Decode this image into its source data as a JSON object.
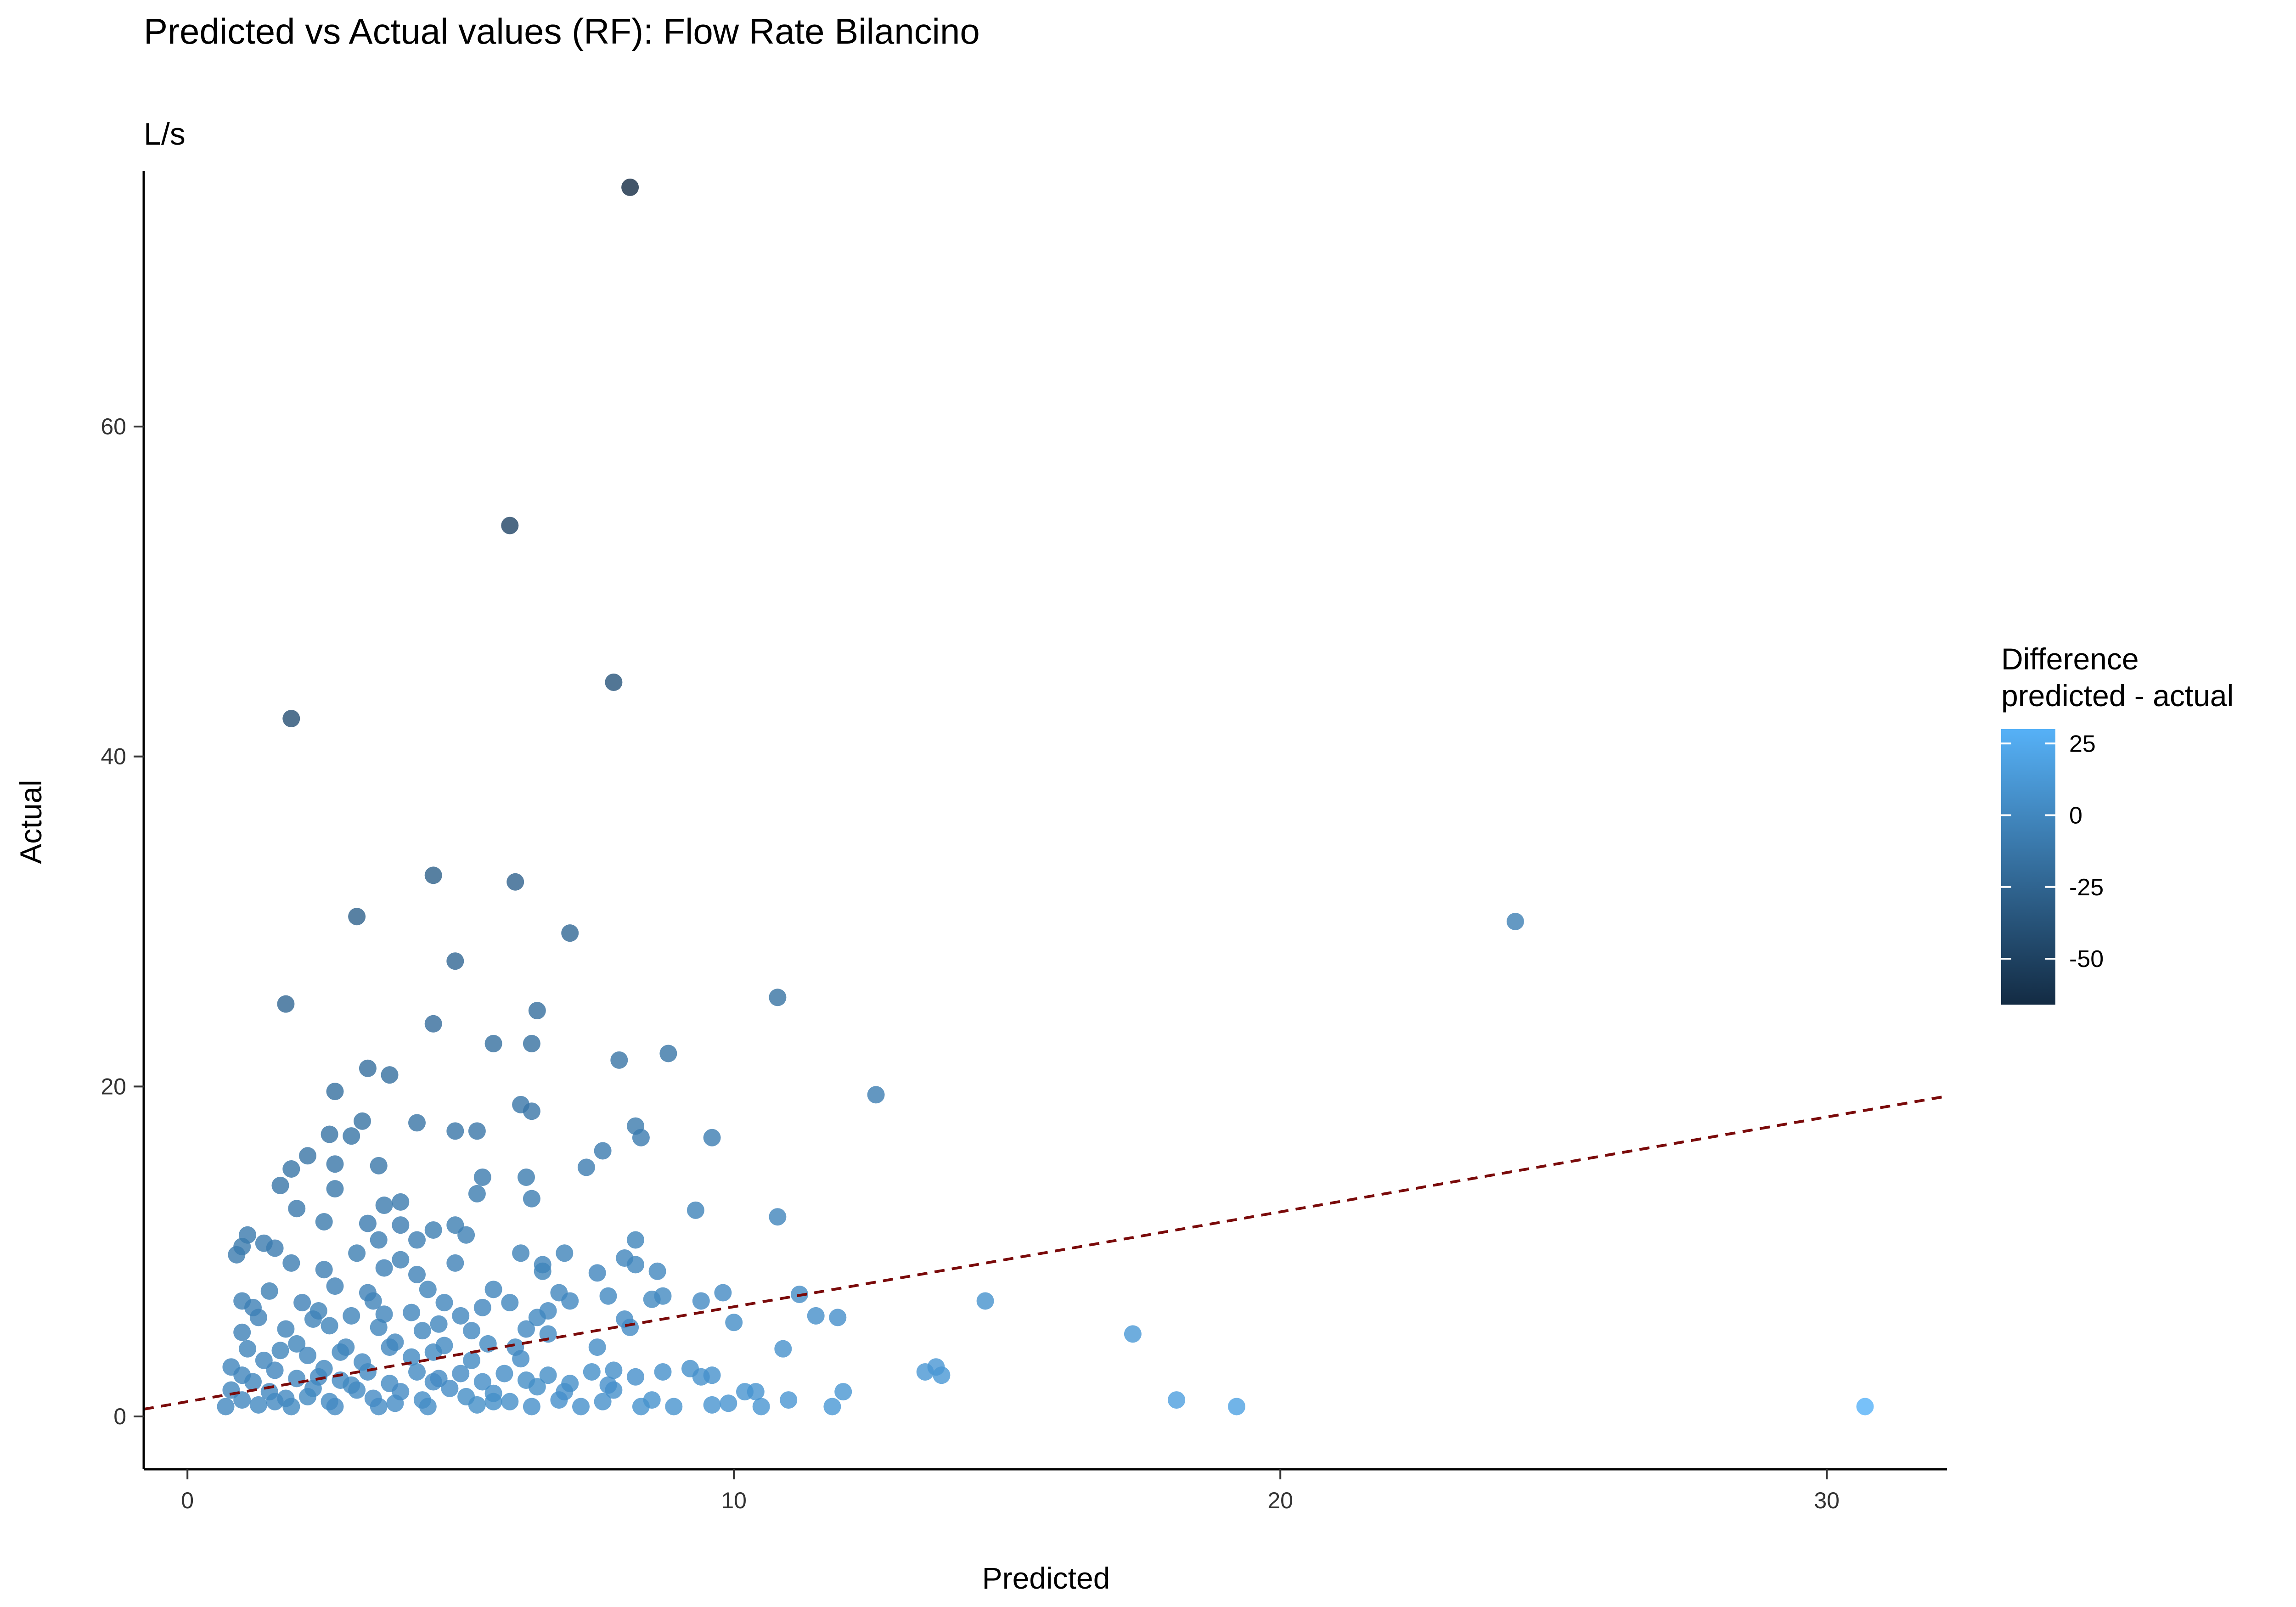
{
  "chart_data": {
    "type": "scatter",
    "title": "Predicted vs Actual values (RF): Flow Rate Bilancino",
    "subtitle": "L/s",
    "xlabel": "Predicted",
    "ylabel": "Actual",
    "xlim": [
      -0.8,
      32.2
    ],
    "ylim": [
      -3.2,
      75.5
    ],
    "x_ticks": [
      "0",
      "10",
      "20",
      "30"
    ],
    "y_ticks": [
      "0",
      "20",
      "40",
      "60"
    ],
    "grid": false,
    "reference_line": {
      "style": "dashed",
      "color": "#7a0a0a",
      "intercept": 0.9,
      "slope": 0.575
    },
    "legend": {
      "title_lines": [
        "Difference",
        "predicted - actual"
      ],
      "position": "right",
      "ticks": [
        "25",
        "0",
        "-25",
        "-50"
      ],
      "range": [
        -66,
        30
      ],
      "color_low": "#132B43",
      "color_high": "#56B1F7"
    },
    "points": [
      [
        8.1,
        74.5
      ],
      [
        5.9,
        54.0
      ],
      [
        1.9,
        42.3
      ],
      [
        7.8,
        44.5
      ],
      [
        4.5,
        32.8
      ],
      [
        6.0,
        32.4
      ],
      [
        3.1,
        30.3
      ],
      [
        7.0,
        29.3
      ],
      [
        4.9,
        27.6
      ],
      [
        1.8,
        25.0
      ],
      [
        10.8,
        25.4
      ],
      [
        6.4,
        24.6
      ],
      [
        4.5,
        23.8
      ],
      [
        5.6,
        22.6
      ],
      [
        6.3,
        22.6
      ],
      [
        8.8,
        22.0
      ],
      [
        7.9,
        21.6
      ],
      [
        3.3,
        21.1
      ],
      [
        3.7,
        20.7
      ],
      [
        2.7,
        19.7
      ],
      [
        12.6,
        19.5
      ],
      [
        6.1,
        18.9
      ],
      [
        6.3,
        18.5
      ],
      [
        3.2,
        17.9
      ],
      [
        4.2,
        17.8
      ],
      [
        8.2,
        17.6
      ],
      [
        5.3,
        17.3
      ],
      [
        4.9,
        17.3
      ],
      [
        2.6,
        17.1
      ],
      [
        3.0,
        17.0
      ],
      [
        8.3,
        16.9
      ],
      [
        9.6,
        16.9
      ],
      [
        7.6,
        16.1
      ],
      [
        2.2,
        15.8
      ],
      [
        3.5,
        15.2
      ],
      [
        7.3,
        15.1
      ],
      [
        2.7,
        15.3
      ],
      [
        1.9,
        15.0
      ],
      [
        5.4,
        14.5
      ],
      [
        6.2,
        14.5
      ],
      [
        1.7,
        14.0
      ],
      [
        2.7,
        13.8
      ],
      [
        5.3,
        13.5
      ],
      [
        6.3,
        13.2
      ],
      [
        3.9,
        13.0
      ],
      [
        3.6,
        12.8
      ],
      [
        2.0,
        12.6
      ],
      [
        9.3,
        12.5
      ],
      [
        10.8,
        12.1
      ],
      [
        2.5,
        11.8
      ],
      [
        3.3,
        11.7
      ],
      [
        3.9,
        11.6
      ],
      [
        4.9,
        11.6
      ],
      [
        4.5,
        11.3
      ],
      [
        1.1,
        11.0
      ],
      [
        5.1,
        11.0
      ],
      [
        3.5,
        10.7
      ],
      [
        4.2,
        10.7
      ],
      [
        1.4,
        10.5
      ],
      [
        1.0,
        10.3
      ],
      [
        8.2,
        10.7
      ],
      [
        0.9,
        9.8
      ],
      [
        1.6,
        10.2
      ],
      [
        3.1,
        9.9
      ],
      [
        6.1,
        9.9
      ],
      [
        6.9,
        9.9
      ],
      [
        8.0,
        9.6
      ],
      [
        1.9,
        9.3
      ],
      [
        4.9,
        9.3
      ],
      [
        3.9,
        9.5
      ],
      [
        8.2,
        9.2
      ],
      [
        6.5,
        9.2
      ],
      [
        3.6,
        9.0
      ],
      [
        2.5,
        8.9
      ],
      [
        4.2,
        8.6
      ],
      [
        6.5,
        8.8
      ],
      [
        7.5,
        8.7
      ],
      [
        8.6,
        8.8
      ],
      [
        1.5,
        7.6
      ],
      [
        2.7,
        7.9
      ],
      [
        3.3,
        7.5
      ],
      [
        4.4,
        7.7
      ],
      [
        5.6,
        7.7
      ],
      [
        6.8,
        7.5
      ],
      [
        7.7,
        7.3
      ],
      [
        8.7,
        7.3
      ],
      [
        11.2,
        7.4
      ],
      [
        14.6,
        7.0
      ],
      [
        9.8,
        7.5
      ],
      [
        9.4,
        7.0
      ],
      [
        1.0,
        7.0
      ],
      [
        2.1,
        6.9
      ],
      [
        3.4,
        7.0
      ],
      [
        4.7,
        6.9
      ],
      [
        5.9,
        6.9
      ],
      [
        7.0,
        7.0
      ],
      [
        8.5,
        7.1
      ],
      [
        1.3,
        6.0
      ],
      [
        2.4,
        6.4
      ],
      [
        3.0,
        6.1
      ],
      [
        4.1,
        6.3
      ],
      [
        5.0,
        6.1
      ],
      [
        6.4,
        6.0
      ],
      [
        8.0,
        5.9
      ],
      [
        10.0,
        5.7
      ],
      [
        11.5,
        6.1
      ],
      [
        11.9,
        6.0
      ],
      [
        1.0,
        5.1
      ],
      [
        1.8,
        5.3
      ],
      [
        2.6,
        5.5
      ],
      [
        3.5,
        5.4
      ],
      [
        4.3,
        5.2
      ],
      [
        5.2,
        5.2
      ],
      [
        6.2,
        5.3
      ],
      [
        6.6,
        5.0
      ],
      [
        8.1,
        5.4
      ],
      [
        17.3,
        5.0
      ],
      [
        1.1,
        4.1
      ],
      [
        2.0,
        4.4
      ],
      [
        2.9,
        4.2
      ],
      [
        3.8,
        4.5
      ],
      [
        4.7,
        4.3
      ],
      [
        5.5,
        4.4
      ],
      [
        7.5,
        4.2
      ],
      [
        10.9,
        4.1
      ],
      [
        1.4,
        3.4
      ],
      [
        2.2,
        3.7
      ],
      [
        3.2,
        3.3
      ],
      [
        4.1,
        3.6
      ],
      [
        5.2,
        3.4
      ],
      [
        6.1,
        3.5
      ],
      [
        13.7,
        3.0
      ],
      [
        0.8,
        3.0
      ],
      [
        1.6,
        2.8
      ],
      [
        2.5,
        2.9
      ],
      [
        3.3,
        2.7
      ],
      [
        4.2,
        2.7
      ],
      [
        5.0,
        2.6
      ],
      [
        5.8,
        2.6
      ],
      [
        6.6,
        2.5
      ],
      [
        7.4,
        2.7
      ],
      [
        7.8,
        2.8
      ],
      [
        8.7,
        2.7
      ],
      [
        9.2,
        2.9
      ],
      [
        9.6,
        2.5
      ],
      [
        13.5,
        2.7
      ],
      [
        13.8,
        2.5
      ],
      [
        1.2,
        2.1
      ],
      [
        2.0,
        2.3
      ],
      [
        2.8,
        2.2
      ],
      [
        3.7,
        2.0
      ],
      [
        4.5,
        2.1
      ],
      [
        5.4,
        2.1
      ],
      [
        6.2,
        2.2
      ],
      [
        7.0,
        2.0
      ],
      [
        8.2,
        2.4
      ],
      [
        9.4,
        2.4
      ],
      [
        0.8,
        1.6
      ],
      [
        1.5,
        1.5
      ],
      [
        2.3,
        1.7
      ],
      [
        3.1,
        1.6
      ],
      [
        3.9,
        1.5
      ],
      [
        4.8,
        1.7
      ],
      [
        5.6,
        1.4
      ],
      [
        6.9,
        1.5
      ],
      [
        7.8,
        1.6
      ],
      [
        10.2,
        1.5
      ],
      [
        10.4,
        1.5
      ],
      [
        12.0,
        1.5
      ],
      [
        1.0,
        1.0
      ],
      [
        1.8,
        1.1
      ],
      [
        2.6,
        0.9
      ],
      [
        3.4,
        1.1
      ],
      [
        4.3,
        1.0
      ],
      [
        5.1,
        1.2
      ],
      [
        5.9,
        0.9
      ],
      [
        6.8,
        1.0
      ],
      [
        8.5,
        1.0
      ],
      [
        11.0,
        1.0
      ],
      [
        18.1,
        1.0
      ],
      [
        0.7,
        0.6
      ],
      [
        1.3,
        0.7
      ],
      [
        1.9,
        0.6
      ],
      [
        2.7,
        0.6
      ],
      [
        3.5,
        0.6
      ],
      [
        4.4,
        0.6
      ],
      [
        5.3,
        0.7
      ],
      [
        6.3,
        0.6
      ],
      [
        7.2,
        0.6
      ],
      [
        8.3,
        0.6
      ],
      [
        8.9,
        0.6
      ],
      [
        9.6,
        0.7
      ],
      [
        10.5,
        0.6
      ],
      [
        11.8,
        0.6
      ],
      [
        19.2,
        0.6
      ],
      [
        30.7,
        0.6
      ],
      [
        24.3,
        30.0
      ],
      [
        1.2,
        6.6
      ],
      [
        2.3,
        5.9
      ],
      [
        3.6,
        6.2
      ],
      [
        4.6,
        5.6
      ],
      [
        5.4,
        6.6
      ],
      [
        6.6,
        6.4
      ],
      [
        1.7,
        4.0
      ],
      [
        2.8,
        3.9
      ],
      [
        3.7,
        4.2
      ],
      [
        4.5,
        3.9
      ],
      [
        6.0,
        4.2
      ],
      [
        1.0,
        2.5
      ],
      [
        2.4,
        2.4
      ],
      [
        3.0,
        1.9
      ],
      [
        4.6,
        2.3
      ],
      [
        6.4,
        1.8
      ],
      [
        7.7,
        1.9
      ],
      [
        1.6,
        0.9
      ],
      [
        2.2,
        1.2
      ],
      [
        3.8,
        0.8
      ],
      [
        5.6,
        0.9
      ],
      [
        7.6,
        0.9
      ],
      [
        9.9,
        0.8
      ]
    ]
  }
}
